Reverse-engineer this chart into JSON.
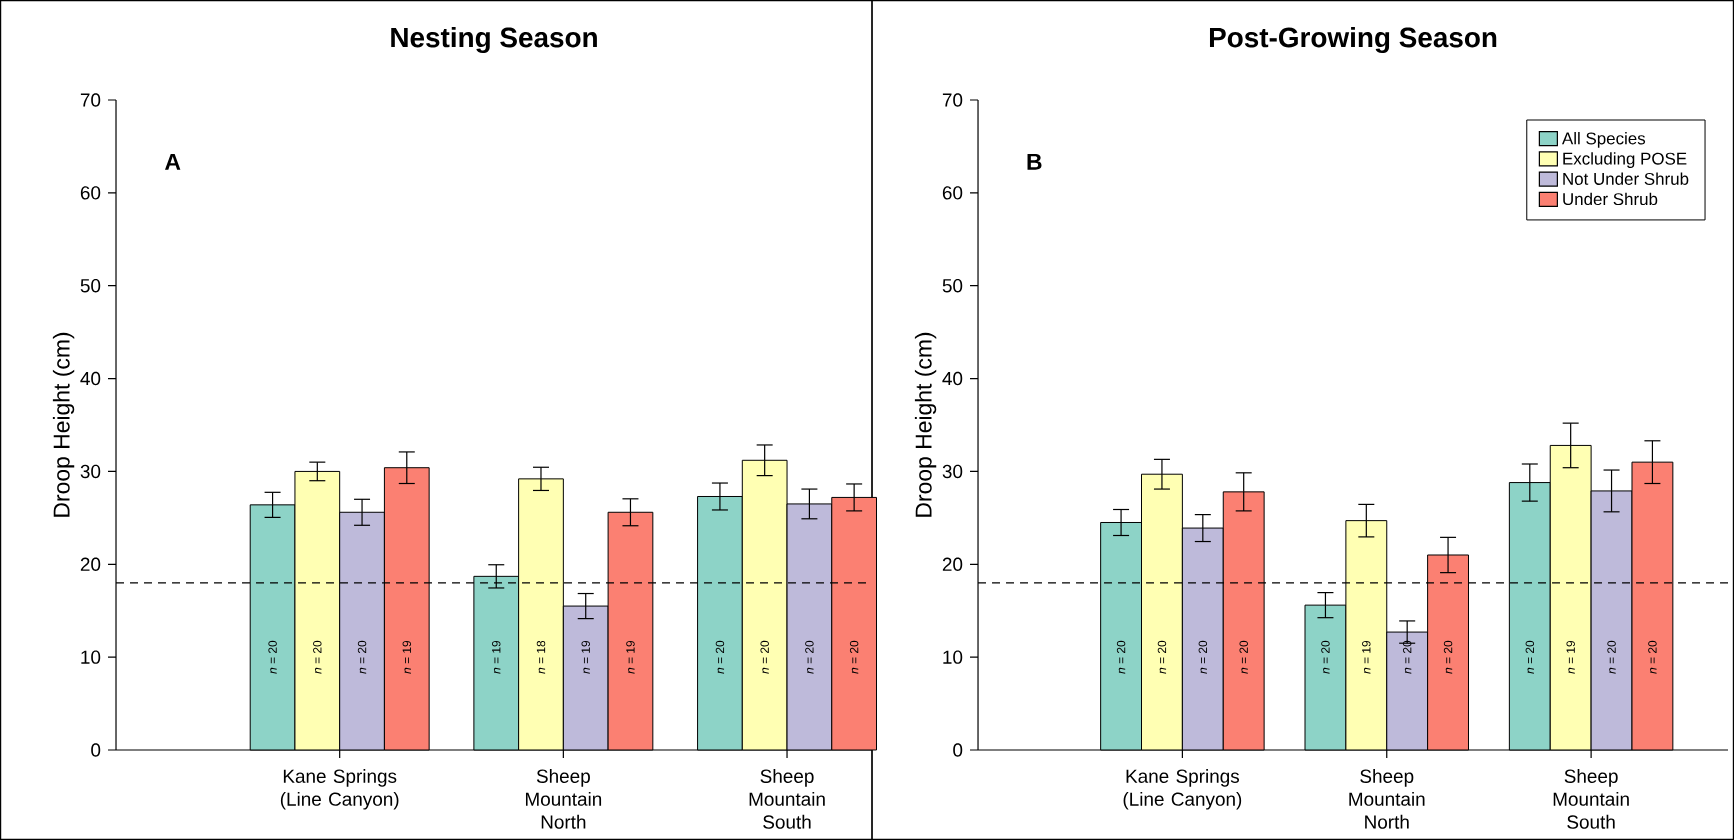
{
  "chart_data": [
    {
      "type": "bar",
      "title": "Nesting Season",
      "ylabel": "Droop Height (cm)",
      "categories": [
        "Kane Springs (Line Canyon)",
        "Sheep Mountain North",
        "Sheep Mountain South"
      ],
      "series": [
        {
          "color": "#8dd3c7",
          "values": [
            26.4,
            18.7,
            27.3
          ],
          "errors": [
            1.35,
            1.25,
            1.45
          ]
        },
        {
          "color": "#ffffb3",
          "values": [
            30.0,
            29.2,
            31.2
          ],
          "errors": [
            1.0,
            1.25,
            1.65
          ]
        },
        {
          "color": "#bebada",
          "values": [
            25.6,
            15.5,
            26.5
          ],
          "errors": [
            1.4,
            1.35,
            1.6
          ]
        },
        {
          "color": "#fb8072",
          "values": [
            30.4,
            25.6,
            27.2
          ],
          "errors": [
            1.7,
            1.45,
            1.45
          ]
        }
      ],
      "ylim": [
        0,
        70
      ],
      "yticks": [
        0,
        10,
        20,
        30,
        40,
        50,
        60,
        70
      ],
      "ref_lines": [
        {
          "axis": "y",
          "value": 18,
          "line_style": "dashed"
        }
      ],
      "annotations": [
        "A",
        "*n* = 20",
        "*n* = 19",
        "*n* = 20",
        "*n* = 20",
        "*n* = 18",
        "*n* = 20",
        "*n* = 20",
        "*n* = 19",
        "*n* = 20",
        "*n* = 19",
        "*n* = 19",
        "*n* = 20"
      ],
      "legend": false
    },
    {
      "type": "bar",
      "title": "Post-Growing Season",
      "ylabel": "Droop Height (cm)",
      "categories": [
        "Kane Springs (Line Canyon)",
        "Sheep Mountain North",
        "Sheep Mountain South"
      ],
      "series": [
        {
          "name": "All Species",
          "color": "#8dd3c7",
          "values": [
            24.5,
            15.6,
            28.8
          ],
          "errors": [
            1.4,
            1.35,
            2.0
          ]
        },
        {
          "name": "Excluding POSE",
          "color": "#ffffb3",
          "values": [
            29.7,
            24.7,
            32.8
          ],
          "errors": [
            1.6,
            1.75,
            2.4
          ]
        },
        {
          "name": "Not Under Shrub",
          "color": "#bebada",
          "values": [
            23.9,
            12.7,
            27.9
          ],
          "errors": [
            1.45,
            1.2,
            2.25
          ]
        },
        {
          "name": "Under Shrub",
          "color": "#fb8072",
          "values": [
            27.8,
            21.0,
            31.0
          ],
          "errors": [
            2.05,
            1.9,
            2.3
          ]
        }
      ],
      "ylim": [
        0,
        70
      ],
      "yticks": [
        0,
        10,
        20,
        30,
        40,
        50,
        60,
        70
      ],
      "ref_lines": [
        {
          "axis": "y",
          "value": 18,
          "line_style": "dashed"
        }
      ],
      "annotations": [
        "B",
        "*n* = 20",
        "*n* = 20",
        "*n* = 20",
        "*n* = 20",
        "*n* = 19",
        "*n* = 19",
        "*n* = 20",
        "*n* = 20",
        "*n* = 20",
        "*n* = 20",
        "*n* = 20",
        "*n* = 20"
      ],
      "legend": "top right"
    }
  ]
}
